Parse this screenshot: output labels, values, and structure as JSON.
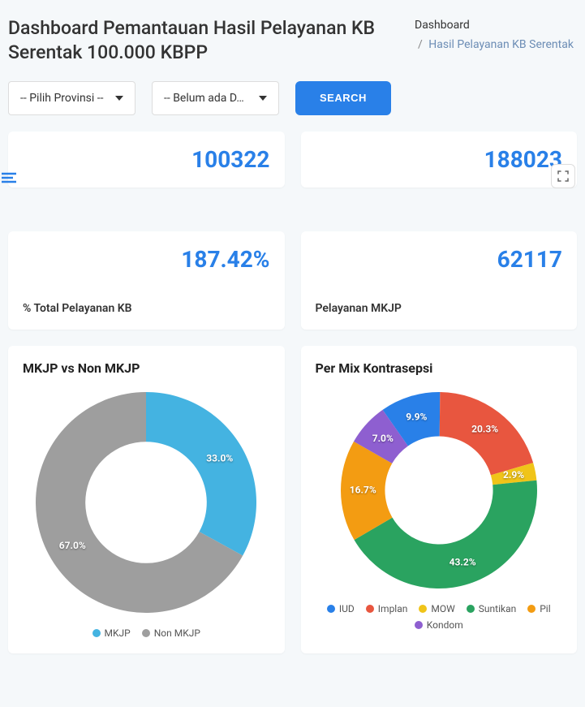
{
  "page_title": "Dashboard Pemantauan Hasil Pelayanan KB Serentak 100.000 KBPP",
  "breadcrumb": {
    "root": "Dashboard",
    "current": "Hasil Pelayanan KB Serentak"
  },
  "controls": {
    "province_placeholder": "-- Pilih Provinsi --",
    "data_placeholder": "-- Belum ada D…",
    "search_label": "SEARCH"
  },
  "stat_cards": {
    "top_left_value": "100322",
    "top_right_value": "188023",
    "pct_value": "187.42%",
    "pct_label": "% Total Pelayanan KB",
    "mkjp_value": "62117",
    "mkjp_label": "Pelayanan MKJP"
  },
  "colors": {
    "accent": "#2980e8",
    "card_bg": "#ffffff",
    "page_bg": "#f5f8fa"
  },
  "chart1": {
    "title": "MKJP vs Non MKJP",
    "type": "donut",
    "inner_radius_ratio": 0.55,
    "slices": [
      {
        "label": "MKJP",
        "value": 33.0,
        "color": "#44b3e1",
        "display": "33.0%"
      },
      {
        "label": "Non MKJP",
        "value": 67.0,
        "color": "#9e9e9e",
        "display": "67.0%"
      }
    ]
  },
  "chart2": {
    "title": "Per Mix Kontrasepsi",
    "type": "donut",
    "inner_radius_ratio": 0.55,
    "slices": [
      {
        "label": "IUD",
        "value": 9.9,
        "color": "#2980e8",
        "display": "9.9%"
      },
      {
        "label": "Implan",
        "value": 20.3,
        "color": "#e8563f",
        "display": "20.3%"
      },
      {
        "label": "MOW",
        "value": 2.9,
        "color": "#f0c419",
        "display": "2.9%"
      },
      {
        "label": "Suntikan",
        "value": 43.2,
        "color": "#2aa360",
        "display": "43.2%"
      },
      {
        "label": "Pil",
        "value": 16.7,
        "color": "#f39c12",
        "display": "16.7%"
      },
      {
        "label": "Kondom",
        "value": 7.0,
        "color": "#8e5fd0",
        "display": "7.0%"
      }
    ]
  }
}
